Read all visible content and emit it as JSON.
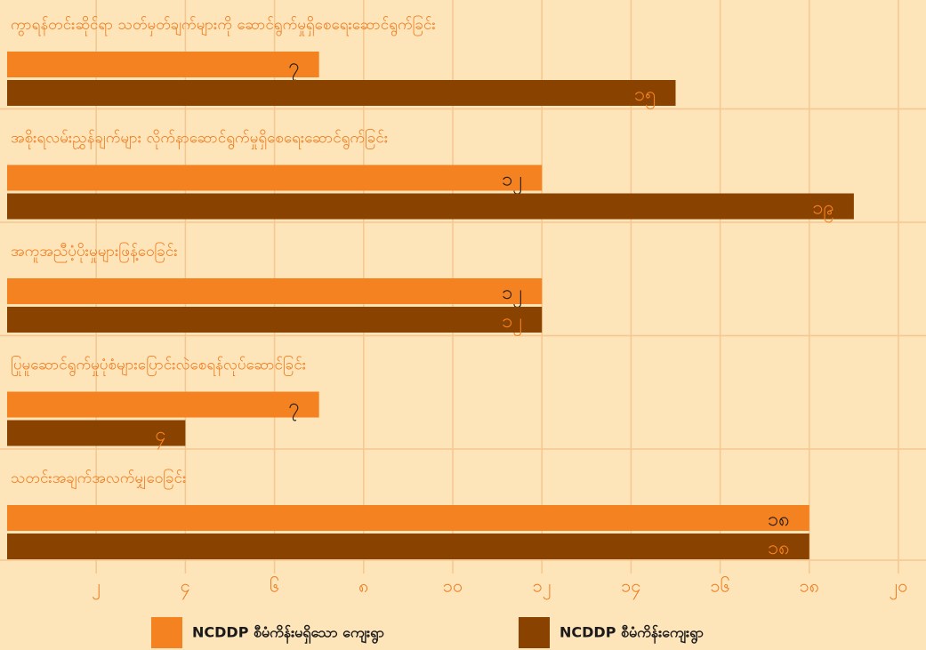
{
  "chart_data": {
    "type": "barh",
    "categories": [
      "ကွာရန်တင်းဆိုင်ရာ သတ်မှတ်ချက်များကို ဆောင်ရွက်မှုရှိစေရေးဆောင်ရွက်ခြင်း",
      "အစိုးရလမ်းညွှန်ချက်များ လိုက်နာဆောင်ရွက်မှုရှိစေရေးဆောင်ရွက်ခြင်း",
      "အကူအညီပံ့ပိုးမှုများဖြန့်ဝေခြင်း",
      "ပြုမူဆောင်ရွက်မှုပုံစံများပြောင်းလဲစေရန်လုပ်ဆောင်ခြင်း",
      "သတင်းအချက်အလက်မျှဝေခြင်း"
    ],
    "series": [
      {
        "name": "NCDDP စီမံကိန်းမရှိသော ကျေးရွာ",
        "color": "#f58220",
        "label_color": "#1a1a1a",
        "values": [
          7,
          12,
          12,
          7,
          18
        ],
        "value_labels": [
          "၇",
          "၁၂",
          "၁၂",
          "၇",
          "၁၈"
        ]
      },
      {
        "name": "NCDDP စီမံကိန်းကျေးရွာ",
        "color": "#8a4200",
        "label_color": "#f58220",
        "values": [
          15,
          19,
          12,
          4,
          18
        ],
        "value_labels": [
          "၁၅",
          "၁၉",
          "၁၂",
          "၄",
          "၁၈"
        ]
      }
    ],
    "xlim": [
      0,
      20
    ],
    "xticks": [
      {
        "value": 2,
        "label": "၂"
      },
      {
        "value": 4,
        "label": "၄"
      },
      {
        "value": 6,
        "label": "၆"
      },
      {
        "value": 8,
        "label": "၈"
      },
      {
        "value": 10,
        "label": "၁၀"
      },
      {
        "value": 12,
        "label": "၁၂"
      },
      {
        "value": 14,
        "label": "၁၄"
      },
      {
        "value": 16,
        "label": "၁၆"
      },
      {
        "value": 18,
        "label": "၁၈"
      },
      {
        "value": 20,
        "label": "၂၀"
      }
    ],
    "grid": true,
    "legend": "bottom"
  }
}
